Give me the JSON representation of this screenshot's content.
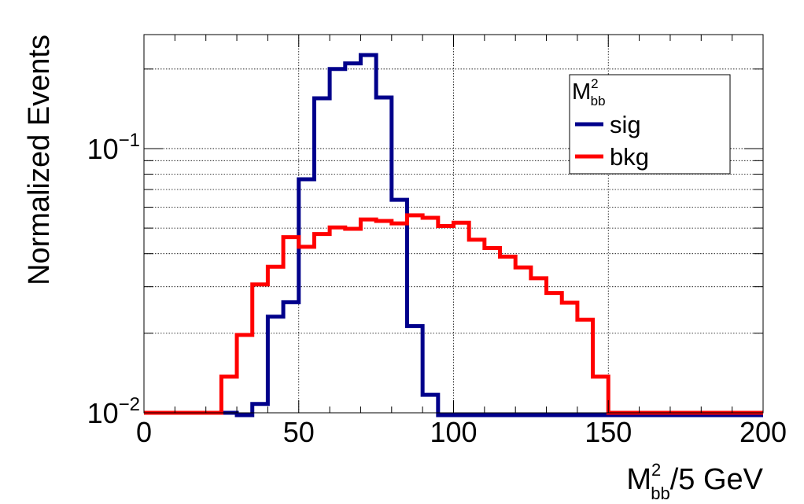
{
  "chart_data": {
    "type": "histogram",
    "title": "",
    "xlabel": "M",
    "xlabel_sup": "2",
    "xlabel_sub": "bb",
    "xlabel_suffix": "/5 GeV",
    "ylabel": "Normalized Events",
    "xlim": [
      0,
      200
    ],
    "ylim": [
      0.01,
      0.27
    ],
    "yscale": "log",
    "grid": true,
    "bin_width": 5,
    "x_ticks": [
      {
        "value": 0,
        "label": "0"
      },
      {
        "value": 50,
        "label": "50"
      },
      {
        "value": 100,
        "label": "100"
      },
      {
        "value": 150,
        "label": "150"
      },
      {
        "value": 200,
        "label": "200"
      }
    ],
    "y_ticks": [
      {
        "value": 0.01,
        "base": "10",
        "exp": "−2"
      },
      {
        "value": 0.1,
        "base": "10",
        "exp": "−1"
      }
    ],
    "legend": {
      "position": "top-right",
      "title": "M",
      "title_sup": "2",
      "title_sub": "bb"
    },
    "series": [
      {
        "name": "sig",
        "color": "#00008b",
        "values": [
          0.01,
          0.01,
          0.01,
          0.01,
          0.01,
          0.01,
          0.0098,
          0.0108,
          0.0231,
          0.0262,
          0.0765,
          0.155,
          0.2,
          0.21,
          0.226,
          0.156,
          0.064,
          0.0213,
          0.0117,
          0.0098,
          0.0098,
          0.0098,
          0.0098,
          0.0098,
          0.0098,
          0.0098,
          0.0098,
          0.0098,
          0.0098,
          0.0098,
          0.0098,
          0.0098,
          0.0098,
          0.0098,
          0.0098,
          0.0098,
          0.0098,
          0.0098,
          0.0098,
          0.0098
        ]
      },
      {
        "name": "bkg",
        "color": "#ff0000",
        "values": [
          0.01,
          0.01,
          0.01,
          0.01,
          0.01,
          0.0137,
          0.0197,
          0.0306,
          0.0357,
          0.0462,
          0.0425,
          0.0475,
          0.0503,
          0.0497,
          0.0539,
          0.0532,
          0.0521,
          0.0559,
          0.0547,
          0.0509,
          0.0524,
          0.0452,
          0.042,
          0.039,
          0.0355,
          0.0323,
          0.0284,
          0.0261,
          0.0225,
          0.0137,
          0.01,
          0.01,
          0.01,
          0.01,
          0.01,
          0.01,
          0.01,
          0.01,
          0.01,
          0.01
        ]
      }
    ]
  }
}
